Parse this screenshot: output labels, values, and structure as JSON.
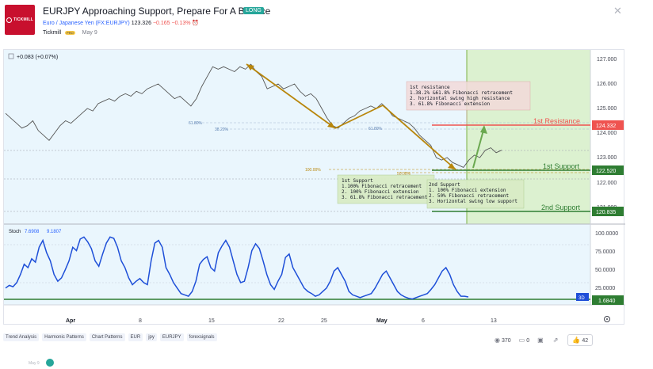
{
  "header": {
    "logo_text": "TICKMILL",
    "title": "EURJPY Approaching Support, Prepare For A Bounce",
    "direction_badge": "LONG",
    "symbol_name": "Euro / Japanese Yen (FX:EURJPY)",
    "price": "123.326",
    "change": "−0.165",
    "change_pct": "−0.13%",
    "author": "Tickmill",
    "author_badge": "PRO",
    "date": "May 9"
  },
  "chart": {
    "main_legend": "+0.083 (+0.07%)",
    "stoch_name": "Stoch",
    "stoch_k": "7.6908",
    "stoch_d": "9.1807",
    "stoch_current_label": "1.6840",
    "timeframe_label": "3D",
    "price_axis": [
      "127.000",
      "126.000",
      "125.000",
      "124.000",
      "123.000",
      "122.000",
      "121.000"
    ],
    "stoch_axis": [
      "100.0000",
      "75.0000",
      "50.0000",
      "25.0000"
    ],
    "time_axis": [
      "Apr",
      "8",
      "15",
      "22",
      "25",
      "May",
      "6",
      "13"
    ],
    "levels": {
      "resistance_label": "1st Resistance",
      "resistance_value": "124.332",
      "support1_label": "1st Support",
      "support1_value": "122.520",
      "support2_label": "2nd Support",
      "support2_value": "120.835"
    },
    "fib_labels": {
      "left_618": "61.80%",
      "left_382": "38.20%",
      "mid_618": "61.80%",
      "hundred": "100.00%",
      "fifty": "50.00%"
    },
    "notes": {
      "resistance": [
        "1st resistance",
        "1.38.2% &61.8% Fibonacci retracement",
        "2. horizontal swing high resistance",
        "3. 61.8%  Fibonacci extension"
      ],
      "support1": [
        "1st Support",
        "1.100% Fibonacci retracement",
        "2. 100% Fibonacci extension",
        "3. 61.8% Fibonacci retracement"
      ],
      "support2": [
        "2nd Support",
        "1. 100% Fibonacci extension",
        "2. 50% Fibonacci retracement",
        "3. Horizontal swing low support"
      ]
    },
    "colors": {
      "resistance": "#ef5350",
      "support": "#2e7d32",
      "arrow": "#b8860b",
      "price_line": "#555555",
      "stoch_line": "#1e4fd8"
    },
    "chart_data": {
      "type": "line",
      "series": [
        {
          "values": [
            124.8,
            124.6,
            124.4,
            124.2,
            124.3,
            124.5,
            124.1,
            123.9,
            123.7,
            124.0,
            124.3,
            124.5,
            124.4,
            124.6,
            124.8,
            125.0,
            124.9,
            125.2,
            125.3,
            125.4,
            125.3,
            125.5,
            125.6,
            125.5,
            125.7,
            125.6,
            125.8,
            125.9,
            126.0,
            125.8,
            125.6,
            125.4,
            125.5,
            125.3,
            125.1,
            125.4,
            125.9,
            126.3,
            126.7,
            126.6,
            126.7,
            126.6,
            126.5,
            126.7,
            126.6,
            126.8,
            126.5,
            126.3,
            125.8,
            125.9,
            126.0,
            125.8,
            125.9,
            126.0,
            125.7,
            125.5,
            125.6,
            125.4,
            125.0,
            124.6,
            124.3,
            124.2,
            124.4,
            124.6,
            124.7,
            124.9,
            125.0,
            125.1,
            125.0,
            125.2,
            125.0,
            124.7,
            124.6,
            124.5,
            124.4,
            124.2,
            123.9,
            123.7,
            123.5,
            123.0,
            122.9,
            123.0,
            122.8,
            122.7,
            122.6,
            122.9,
            123.1,
            123.0,
            123.3,
            123.4,
            123.2,
            123.3
          ]
        },
        {
          "name": "Stoch",
          "values": [
            20,
            24,
            22,
            28,
            40,
            55,
            50,
            63,
            58,
            80,
            90,
            72,
            60,
            40,
            30,
            35,
            47,
            60,
            80,
            75,
            92,
            95,
            88,
            78,
            60,
            52,
            70,
            86,
            95,
            93,
            80,
            60,
            50,
            35,
            25,
            30,
            34,
            28,
            25,
            60,
            86,
            90,
            80,
            50,
            40,
            28,
            20,
            12,
            10,
            8,
            15,
            30,
            55,
            62,
            66,
            50,
            45,
            72,
            82,
            90,
            80,
            60,
            40,
            28,
            30,
            50,
            75,
            85,
            78,
            60,
            40,
            25,
            18,
            30,
            40,
            65,
            70,
            50,
            40,
            30,
            20,
            15,
            12,
            8,
            10,
            15,
            20,
            30,
            45,
            50,
            40,
            30,
            15,
            10,
            8,
            6,
            8,
            10,
            12,
            20,
            30,
            40,
            45,
            35,
            25,
            15,
            10,
            7,
            5,
            4,
            6,
            8,
            10,
            12,
            18,
            25,
            35,
            45,
            50,
            40,
            25,
            15,
            8,
            8,
            7
          ]
        }
      ]
    }
  },
  "tags": [
    "Trend Analysis",
    "Harmonic Patterns",
    "Chart Patterns",
    "EUR",
    "jpy",
    "EURJPY",
    "forexsignals"
  ],
  "stats": {
    "views": "370",
    "comments": "0",
    "likes": "42"
  },
  "footer": {
    "date": "May 9"
  }
}
